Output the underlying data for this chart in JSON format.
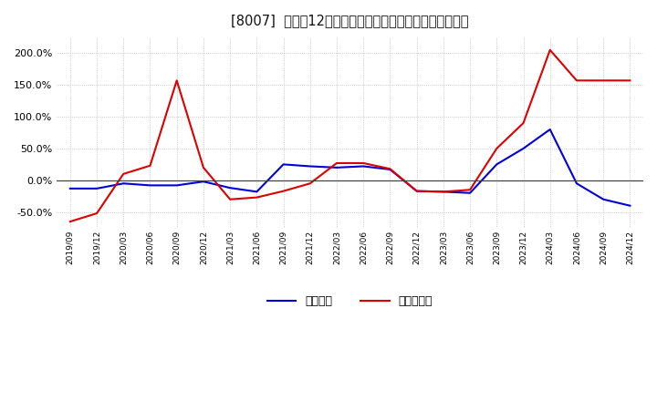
{
  "title": "[8007]  利益だ12か月移動合計の対前年同期増減率の推移",
  "ylim": [
    -75,
    225
  ],
  "yticks": [
    -50,
    0,
    50,
    100,
    150,
    200
  ],
  "background_color": "#ffffff",
  "grid_color": "#aaaaaa",
  "line_color_blue": "#0000dd",
  "line_color_red": "#dd0000",
  "legend_blue": "経常利益",
  "legend_red": "当期純利益",
  "x_labels": [
    "2019/09",
    "2019/12",
    "2020/03",
    "2020/06",
    "2020/09",
    "2020/12",
    "2021/03",
    "2021/06",
    "2021/09",
    "2021/12",
    "2022/03",
    "2022/06",
    "2022/09",
    "2022/12",
    "2023/03",
    "2023/06",
    "2023/09",
    "2023/12",
    "2024/03",
    "2024/06",
    "2024/09",
    "2024/12"
  ],
  "blue_values": [
    -13,
    -13,
    -5,
    -8,
    -8,
    -2,
    -12,
    -18,
    25,
    22,
    20,
    22,
    17,
    -17,
    -18,
    -20,
    25,
    50,
    80,
    -5,
    -30,
    -40
  ],
  "red_values": [
    -65,
    -52,
    10,
    23,
    157,
    20,
    -30,
    -27,
    -17,
    -5,
    27,
    27,
    18,
    -17,
    -18,
    -15,
    50,
    90,
    205,
    157,
    157,
    157
  ]
}
